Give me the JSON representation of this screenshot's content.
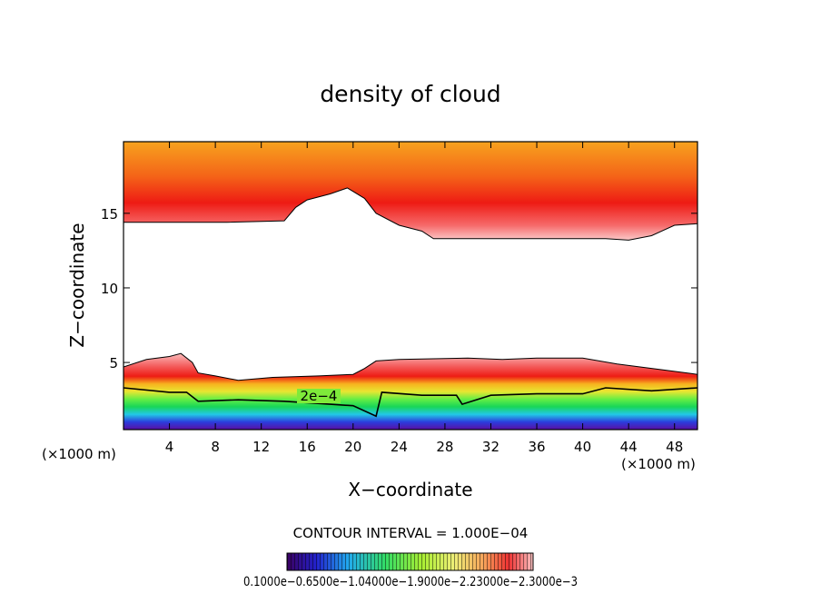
{
  "chart_data": {
    "type": "heatmap",
    "title": "density of cloud",
    "xlabel": "X−coordinate",
    "ylabel": "Z−coordinate",
    "x_unit_left": "(×1000 m)",
    "x_unit_right": "(×1000 m)",
    "xlim": [
      0,
      50
    ],
    "ylim": [
      0.5,
      19.8
    ],
    "x_ticks": [
      4,
      8,
      12,
      16,
      20,
      24,
      28,
      32,
      36,
      40,
      44,
      48
    ],
    "x_tick_labels": [
      "4",
      "8",
      "12",
      "16",
      "20",
      "24",
      "28",
      "32",
      "36",
      "40",
      "44",
      "48"
    ],
    "y_ticks": [
      5,
      10,
      15
    ],
    "y_tick_labels": [
      "5",
      "10",
      "15"
    ],
    "contour_annotation": "2e−4",
    "contour_interval_text": "CONTOUR INTERVAL =  1.000E−04",
    "colorbar_labels_text": "0.1000e−0.6500e−1.04000e−1.9000e−2.23000e−2.3000e−3",
    "upper_cloud_base": [
      [
        0,
        14.4
      ],
      [
        9,
        14.4
      ],
      [
        14,
        14.5
      ],
      [
        15,
        15.4
      ],
      [
        16,
        15.9
      ],
      [
        18,
        16.3
      ],
      [
        19.5,
        16.7
      ],
      [
        21,
        16.0
      ],
      [
        22,
        15.0
      ],
      [
        24,
        14.2
      ],
      [
        26,
        13.8
      ],
      [
        27,
        13.3
      ],
      [
        30,
        13.3
      ],
      [
        37,
        13.3
      ],
      [
        42,
        13.3
      ],
      [
        44,
        13.2
      ],
      [
        46,
        13.5
      ],
      [
        48,
        14.2
      ],
      [
        50,
        14.3
      ]
    ],
    "lower_cloud_top": [
      [
        0,
        4.7
      ],
      [
        2,
        5.2
      ],
      [
        4,
        5.4
      ],
      [
        5,
        5.6
      ],
      [
        6,
        5.0
      ],
      [
        6.5,
        4.3
      ],
      [
        8,
        4.1
      ],
      [
        10,
        3.8
      ],
      [
        13,
        4.0
      ],
      [
        17,
        4.1
      ],
      [
        20,
        4.2
      ],
      [
        21,
        4.6
      ],
      [
        22,
        5.1
      ],
      [
        24,
        5.2
      ],
      [
        30,
        5.3
      ],
      [
        33,
        5.2
      ],
      [
        36,
        5.3
      ],
      [
        40,
        5.3
      ],
      [
        43,
        4.9
      ],
      [
        47,
        4.5
      ],
      [
        50,
        4.2
      ]
    ],
    "contour_2e4": [
      [
        0,
        3.3
      ],
      [
        4,
        3.0
      ],
      [
        5.5,
        3.0
      ],
      [
        6.5,
        2.4
      ],
      [
        10,
        2.5
      ],
      [
        14,
        2.4
      ],
      [
        18,
        2.2
      ],
      [
        20,
        2.1
      ],
      [
        22,
        1.4
      ],
      [
        22.5,
        3.0
      ],
      [
        26,
        2.8
      ],
      [
        29,
        2.8
      ],
      [
        29.5,
        2.2
      ],
      [
        32,
        2.8
      ],
      [
        36,
        2.9
      ],
      [
        40,
        2.9
      ],
      [
        42,
        3.3
      ],
      [
        46,
        3.1
      ],
      [
        50,
        3.3
      ]
    ]
  }
}
